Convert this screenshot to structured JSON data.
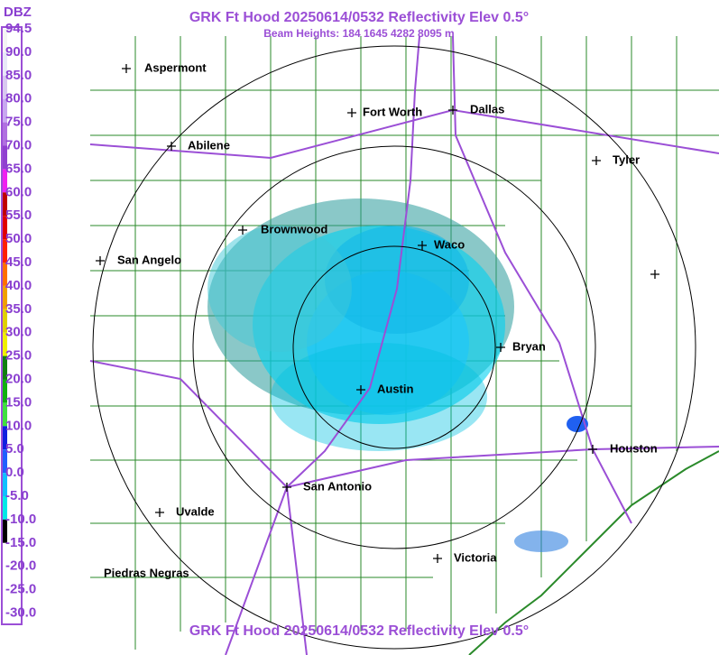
{
  "header": {
    "title": "GRK Ft Hood 20250614/0532 Reflectivity Elev 0.5°",
    "subtitle": "Beam Heights: 184 1645 4282 8095 m"
  },
  "legend": {
    "title": "DBZ",
    "labels": [
      "94.5",
      "90.0",
      "85.0",
      "80.0",
      "75.0",
      "70.0",
      "65.0",
      "60.0",
      "55.0",
      "50.0",
      "45.0",
      "40.0",
      "35.0",
      "30.0",
      "25.0",
      "20.0",
      "15.0",
      "10.0",
      "5.0",
      "0.0",
      "-5.0",
      "-10.0",
      "-15.0",
      "-20.0",
      "-25.0",
      "-30.0"
    ]
  },
  "cities": [
    "Aspermont",
    "Abilene",
    "Fort Worth",
    "Dallas",
    "Tyler",
    "Brownwood",
    "Waco",
    "San Angelo",
    "Bryan",
    "Austin",
    "Houston",
    "San Antonio",
    "Uvalde",
    "Victoria",
    "Piedras Negras"
  ],
  "footer": {
    "title": "GRK Ft Hood 20250614/0532 Reflectivity Elev 0.5°"
  }
}
